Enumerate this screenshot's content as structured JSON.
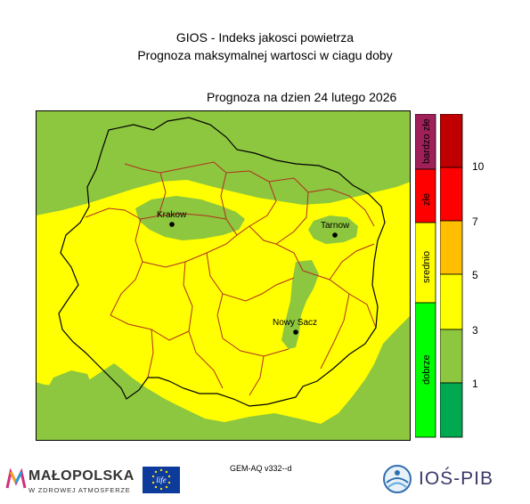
{
  "header": {
    "title_line1": "GIOS - Indeks jakosci powietrza",
    "title_line2": "Prognoza maksymalnej wartosci w ciagu doby",
    "forecast_date": "Prognoza na dzien  24 lutego 2026"
  },
  "map": {
    "cities": [
      {
        "name": "Krakow"
      },
      {
        "name": "Tarnow"
      },
      {
        "name": "Nowy Sacz"
      }
    ],
    "colors": {
      "good": "#8dc63f",
      "moderate": "#ffff00",
      "bad": "#ff0000",
      "very_bad": "#a0205a",
      "province_border": "#000000",
      "county_border": "#b03020"
    }
  },
  "legend": {
    "levels": [
      {
        "label": "bardzo złe",
        "color": "#a0205a"
      },
      {
        "label": "złe",
        "color": "#ff0000"
      },
      {
        "label": "srednio",
        "color": "#ffff00"
      },
      {
        "label": "dobrze",
        "color": "#00ff00"
      }
    ],
    "scale_colors": [
      "#c00000",
      "#ff0000",
      "#ffbf00",
      "#ffff00",
      "#8dc63f",
      "#00a850"
    ],
    "ticks": [
      "10",
      "7",
      "5",
      "3",
      "1"
    ]
  },
  "footer": {
    "model": "GEM-AQ v332--d",
    "logo_malopolska_main": "MAŁOPOLSKA",
    "logo_malopolska_sub": "W ZDROWEJ ATMOSFERZE",
    "logo_eu": "life",
    "logo_ios": "IOŚ-PIB"
  }
}
